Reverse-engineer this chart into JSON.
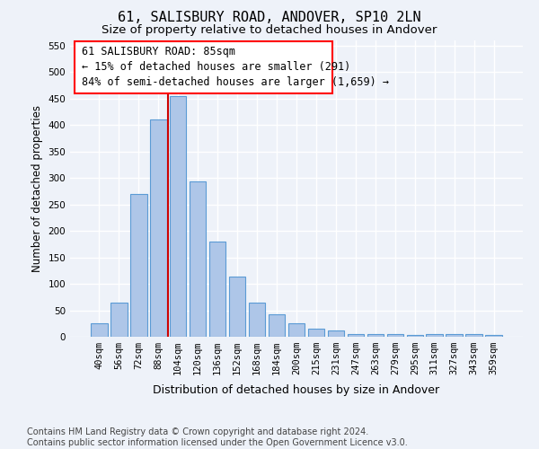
{
  "title1": "61, SALISBURY ROAD, ANDOVER, SP10 2LN",
  "title2": "Size of property relative to detached houses in Andover",
  "xlabel": "Distribution of detached houses by size in Andover",
  "ylabel": "Number of detached properties",
  "categories": [
    "40sqm",
    "56sqm",
    "72sqm",
    "88sqm",
    "104sqm",
    "120sqm",
    "136sqm",
    "152sqm",
    "168sqm",
    "184sqm",
    "200sqm",
    "215sqm",
    "231sqm",
    "247sqm",
    "263sqm",
    "279sqm",
    "295sqm",
    "311sqm",
    "327sqm",
    "343sqm",
    "359sqm"
  ],
  "values": [
    25,
    65,
    270,
    410,
    455,
    293,
    180,
    113,
    65,
    42,
    25,
    15,
    12,
    5,
    5,
    5,
    4,
    5,
    5,
    5,
    4
  ],
  "bar_color": "#aec6e8",
  "bar_edge_color": "#5b9bd5",
  "bar_width": 0.85,
  "ylim": [
    0,
    560
  ],
  "yticks": [
    0,
    50,
    100,
    150,
    200,
    250,
    300,
    350,
    400,
    450,
    500,
    550
  ],
  "vline_x": 3.5,
  "vline_color": "#cc0000",
  "annotation_line1": "61 SALISBURY ROAD: 85sqm",
  "annotation_line2": "← 15% of detached houses are smaller (291)",
  "annotation_line3": "84% of semi-detached houses are larger (1,659) →",
  "footer_text": "Contains HM Land Registry data © Crown copyright and database right 2024.\nContains public sector information licensed under the Open Government Licence v3.0.",
  "bg_color": "#eef2f9",
  "plot_bg_color": "#eef2f9",
  "grid_color": "#ffffff",
  "title1_fontsize": 11,
  "title2_fontsize": 9.5,
  "xlabel_fontsize": 9,
  "ylabel_fontsize": 8.5,
  "tick_fontsize": 7.5,
  "annotation_fontsize": 8.5,
  "footer_fontsize": 7
}
